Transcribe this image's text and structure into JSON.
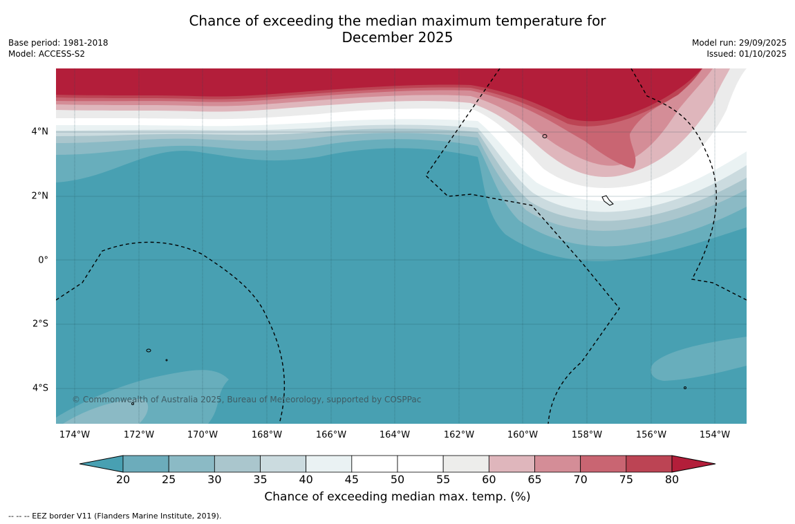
{
  "title": {
    "line1": "Chance of exceeding the median maximum temperature for",
    "line2": "December 2025"
  },
  "meta_left": {
    "base_period": "Base period: 1981-2018",
    "model": "Model: ACCESS-S2"
  },
  "meta_right": {
    "model_run": "Model run: 29/09/2025",
    "issued": "Issued: 01/10/2025"
  },
  "map": {
    "lat_labels": [
      "4°N",
      "2°N",
      "0°",
      "2°S",
      "4°S"
    ],
    "lon_labels": [
      "174°W",
      "172°W",
      "170°W",
      "168°W",
      "166°W",
      "164°W",
      "162°W",
      "160°W",
      "158°W",
      "156°W",
      "154°W"
    ],
    "copyright": "© Commonwealth of Australia 2025, Bureau of Meteorology, supported by COSPPac",
    "colors": {
      "base_blue": "#48a0b2",
      "light_blue": "#68aebc",
      "pale_blue": "#a9c8d0",
      "grey": "#ebebeb",
      "white": "#ffffff",
      "pink": "#dcb4ba",
      "rose": "#d38d96",
      "red": "#c86471",
      "dark_red": "#b31e3a"
    }
  },
  "colorbar": {
    "ticks": [
      "20",
      "25",
      "30",
      "35",
      "40",
      "45",
      "50",
      "55",
      "60",
      "65",
      "70",
      "75",
      "80"
    ],
    "colors": [
      "#6cacbb",
      "#8bbac5",
      "#aac6cd",
      "#cbdbdf",
      "#eaf2f3",
      "#ffffff",
      "#ffffff",
      "#ededeb",
      "#dfb6bc",
      "#d48d97",
      "#c96572",
      "#bc4454"
    ],
    "low_color": "#48a0b2",
    "high_color": "#b31e3a",
    "title": "Chance of exceeding median max. temp. (%)"
  },
  "footer": {
    "legend": "-- -- -- EEZ border V11 (Flanders Marine Institute, 2019)."
  }
}
